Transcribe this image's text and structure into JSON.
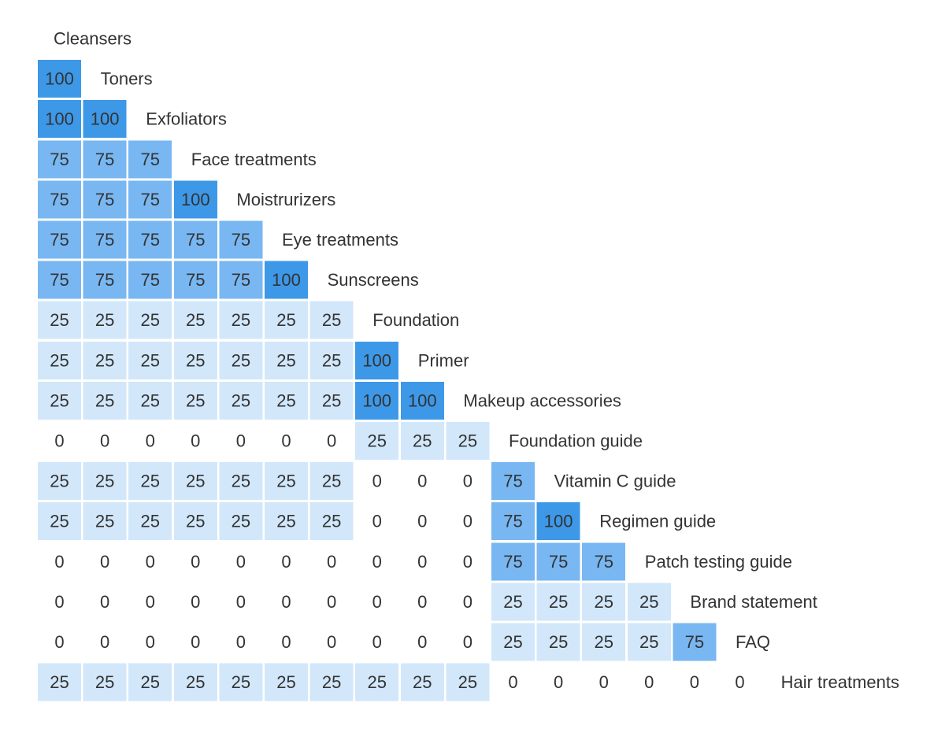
{
  "chart_data": {
    "type": "heatmap",
    "labels": [
      "Cleansers",
      "Toners",
      "Exfoliators",
      "Face treatments",
      "Moistrurizers",
      "Eye treatments",
      "Sunscreens",
      "Foundation",
      "Primer",
      "Makeup accessories",
      "Foundation guide",
      "Vitamin C guide",
      "Regimen guide",
      "Patch testing guide",
      "Brand statement",
      "FAQ",
      "Hair treatments"
    ],
    "matrix": [
      [],
      [
        100
      ],
      [
        100,
        100
      ],
      [
        75,
        75,
        75
      ],
      [
        75,
        75,
        75,
        100
      ],
      [
        75,
        75,
        75,
        75,
        75
      ],
      [
        75,
        75,
        75,
        75,
        75,
        100
      ],
      [
        25,
        25,
        25,
        25,
        25,
        25,
        25
      ],
      [
        25,
        25,
        25,
        25,
        25,
        25,
        25,
        100
      ],
      [
        25,
        25,
        25,
        25,
        25,
        25,
        25,
        100,
        100
      ],
      [
        0,
        0,
        0,
        0,
        0,
        0,
        0,
        25,
        25,
        25
      ],
      [
        25,
        25,
        25,
        25,
        25,
        25,
        25,
        0,
        0,
        0,
        75
      ],
      [
        25,
        25,
        25,
        25,
        25,
        25,
        25,
        0,
        0,
        0,
        75,
        100
      ],
      [
        0,
        0,
        0,
        0,
        0,
        0,
        0,
        0,
        0,
        0,
        75,
        75,
        75
      ],
      [
        0,
        0,
        0,
        0,
        0,
        0,
        0,
        0,
        0,
        0,
        25,
        25,
        25,
        25
      ],
      [
        0,
        0,
        0,
        0,
        0,
        0,
        0,
        0,
        0,
        0,
        25,
        25,
        25,
        25,
        75
      ],
      [
        25,
        25,
        25,
        25,
        25,
        25,
        25,
        25,
        25,
        25,
        0,
        0,
        0,
        0,
        0,
        0
      ]
    ],
    "value_range": [
      0,
      100
    ],
    "colors": {
      "100": "#3d98e8",
      "75": "#78b7f2",
      "25": "#d2e7fa",
      "0": "#ffffff",
      "text": "#333333"
    }
  }
}
